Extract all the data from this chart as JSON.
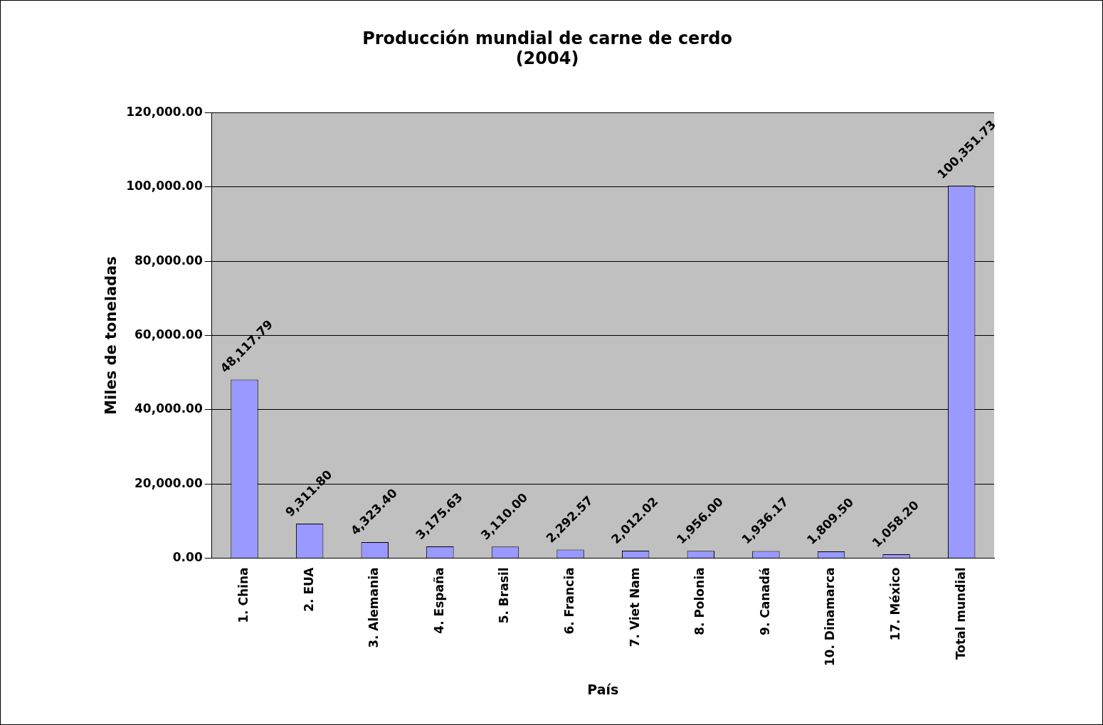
{
  "chart_data": {
    "type": "bar",
    "title": "Producción mundial de carne de cerdo\n(2004)",
    "xlabel": "País",
    "ylabel": "Miles de toneladas",
    "categories": [
      "1. China",
      "2. EUA",
      "3. Alemania",
      "4. España",
      "5. Brasil",
      "6. Francia",
      "7. Viet Nam",
      "8. Polonia",
      "9. Canadá",
      "10. Dinamarca",
      "17. México",
      "Total mundial"
    ],
    "values": [
      48117.79,
      9311.8,
      4323.4,
      3175.63,
      3110.0,
      2292.57,
      2012.02,
      1956.0,
      1936.17,
      1809.5,
      1058.2,
      100351.73
    ],
    "value_labels": [
      "48,117.79",
      "9,311.80",
      "4,323.40",
      "3,175.63",
      "3,110.00",
      "2,292.57",
      "2,012.02",
      "1,956.00",
      "1,936.17",
      "1,809.50",
      "1,058.20",
      "100,351.73"
    ],
    "color": "#9999ff",
    "ylim": [
      0,
      120000
    ],
    "yticks": [
      {
        "value": 0,
        "label": "0.00"
      },
      {
        "value": 20000,
        "label": "20,000.00"
      },
      {
        "value": 40000,
        "label": "40,000.00"
      },
      {
        "value": 60000,
        "label": "60,000.00"
      },
      {
        "value": 80000,
        "label": "80,000.00"
      },
      {
        "value": 100000,
        "label": "100,000.00"
      },
      {
        "value": 120000,
        "label": "120,000.00"
      }
    ],
    "grid": "y",
    "legend": false
  }
}
